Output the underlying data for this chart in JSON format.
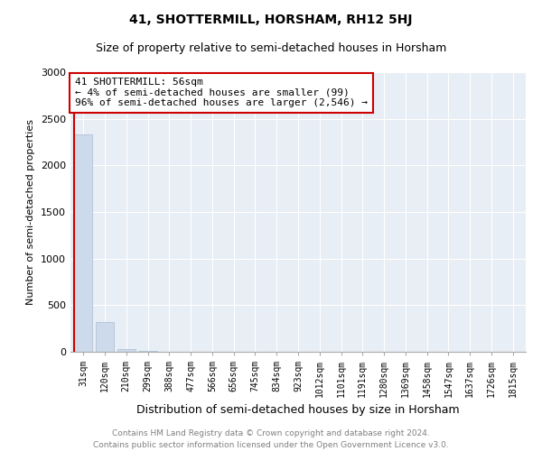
{
  "title": "41, SHOTTERMILL, HORSHAM, RH12 5HJ",
  "subtitle": "Size of property relative to semi-detached houses in Horsham",
  "xlabel": "Distribution of semi-detached houses by size in Horsham",
  "ylabel": "Number of semi-detached properties",
  "categories": [
    "31sqm",
    "120sqm",
    "210sqm",
    "299sqm",
    "388sqm",
    "477sqm",
    "566sqm",
    "656sqm",
    "745sqm",
    "834sqm",
    "923sqm",
    "1012sqm",
    "1101sqm",
    "1191sqm",
    "1280sqm",
    "1369sqm",
    "1458sqm",
    "1547sqm",
    "1637sqm",
    "1726sqm",
    "1815sqm"
  ],
  "values": [
    2330,
    320,
    30,
    5,
    3,
    2,
    1,
    1,
    1,
    0,
    0,
    0,
    0,
    0,
    0,
    0,
    0,
    0,
    0,
    0,
    0
  ],
  "bar_color": "#ccdaeb",
  "bar_edge_color": "#aabdd4",
  "vline_color": "#cc0000",
  "vline_x": -0.5,
  "annotation_text": "41 SHOTTERMILL: 56sqm\n← 4% of semi-detached houses are smaller (99)\n96% of semi-detached houses are larger (2,546) →",
  "annotation_box_facecolor": "#ffffff",
  "annotation_box_edgecolor": "#cc0000",
  "ylim": [
    0,
    3000
  ],
  "yticks": [
    0,
    500,
    1000,
    1500,
    2000,
    2500,
    3000
  ],
  "footer": "Contains HM Land Registry data © Crown copyright and database right 2024.\nContains public sector information licensed under the Open Government Licence v3.0.",
  "title_fontsize": 10,
  "subtitle_fontsize": 9,
  "xlabel_fontsize": 9,
  "ylabel_fontsize": 8,
  "tick_fontsize": 7,
  "annotation_fontsize": 8,
  "footer_fontsize": 6.5,
  "bg_color": "#e8eef5"
}
